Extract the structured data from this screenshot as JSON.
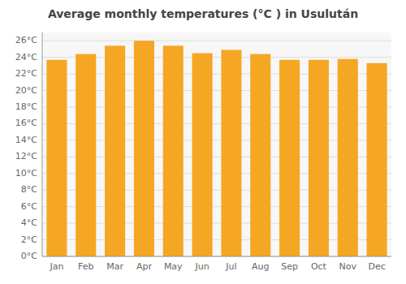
{
  "chart_data": {
    "type": "bar",
    "title": "Average monthly temperatures (°C ) in Usulután",
    "categories": [
      "Jan",
      "Feb",
      "Mar",
      "Apr",
      "May",
      "Jun",
      "Jul",
      "Aug",
      "Sep",
      "Oct",
      "Nov",
      "Dec"
    ],
    "values": [
      23.7,
      24.4,
      25.4,
      26.0,
      25.4,
      24.5,
      24.9,
      24.4,
      23.7,
      23.7,
      23.8,
      23.3
    ],
    "color": "#F5A623",
    "ylim": [
      0,
      27
    ],
    "yticks": [
      {
        "value": 0,
        "label": "0°C"
      },
      {
        "value": 2,
        "label": "2°C"
      },
      {
        "value": 4,
        "label": "4°C"
      },
      {
        "value": 6,
        "label": "6°C"
      },
      {
        "value": 8,
        "label": "8°C"
      },
      {
        "value": 10,
        "label": "10°C"
      },
      {
        "value": 12,
        "label": "12°C"
      },
      {
        "value": 14,
        "label": "14°C"
      },
      {
        "value": 16,
        "label": "16°C"
      },
      {
        "value": 18,
        "label": "18°C"
      },
      {
        "value": 20,
        "label": "20°C"
      },
      {
        "value": 22,
        "label": "22°C"
      },
      {
        "value": 24,
        "label": "24°C"
      },
      {
        "value": 26,
        "label": "26°C"
      }
    ],
    "grid": true
  }
}
